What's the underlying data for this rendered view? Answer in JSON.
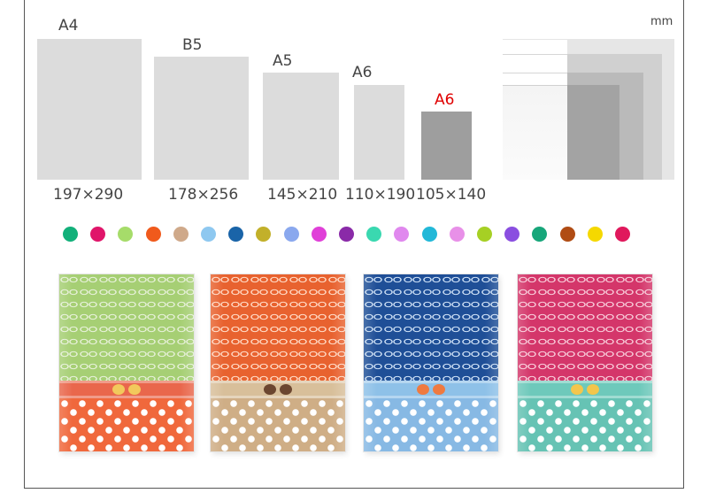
{
  "unit_label": "mm",
  "sizes": [
    {
      "name": "A4",
      "dims": "197×290",
      "highlight": false
    },
    {
      "name": "B5",
      "dims": "178×256",
      "highlight": false
    },
    {
      "name": "A5",
      "dims": "145×210",
      "highlight": false
    },
    {
      "name": "A6",
      "dims": "110×190",
      "highlight": false
    },
    {
      "name": "A6",
      "dims": "105×140",
      "highlight": true
    }
  ],
  "colors": {
    "card": "#dcdcdc",
    "card_highlight": "#9e9e9e",
    "label_highlight": "#e00000"
  },
  "color_swatches": [
    "#12b07a",
    "#e0156a",
    "#a6dc6a",
    "#f05a1c",
    "#cfa98a",
    "#8ec8f0",
    "#1a64a8",
    "#c2b02a",
    "#8aa8ee",
    "#e040d8",
    "#8a2aa8",
    "#3ad8b0",
    "#e088ee",
    "#22b8d8",
    "#e890e8",
    "#a6d024",
    "#8a4ee0",
    "#17a67a",
    "#b04c14",
    "#f5d800",
    "#e0185c"
  ],
  "notebooks": [
    {
      "name": "green-orange",
      "top": "#a6cf74",
      "band": "#e9674c",
      "bottom": "#f0683c",
      "bow": "#f2c95c",
      "pattern": "#e6f0d8"
    },
    {
      "name": "orange-tan",
      "top": "#e8622f",
      "band": "#d8bf9a",
      "bottom": "#cfae86",
      "bow": "#6b4630",
      "pattern": "#ffd9c4"
    },
    {
      "name": "blue-lightblue",
      "top": "#1f4f97",
      "band": "#8ec1e8",
      "bottom": "#87b9e4",
      "bow": "#ef7a40",
      "pattern": "#cde0f5"
    },
    {
      "name": "pink-teal",
      "top": "#d4366a",
      "band": "#6ec9bb",
      "bottom": "#66c3b4",
      "bow": "#f3c64c",
      "pattern": "#f8cbd9"
    }
  ]
}
